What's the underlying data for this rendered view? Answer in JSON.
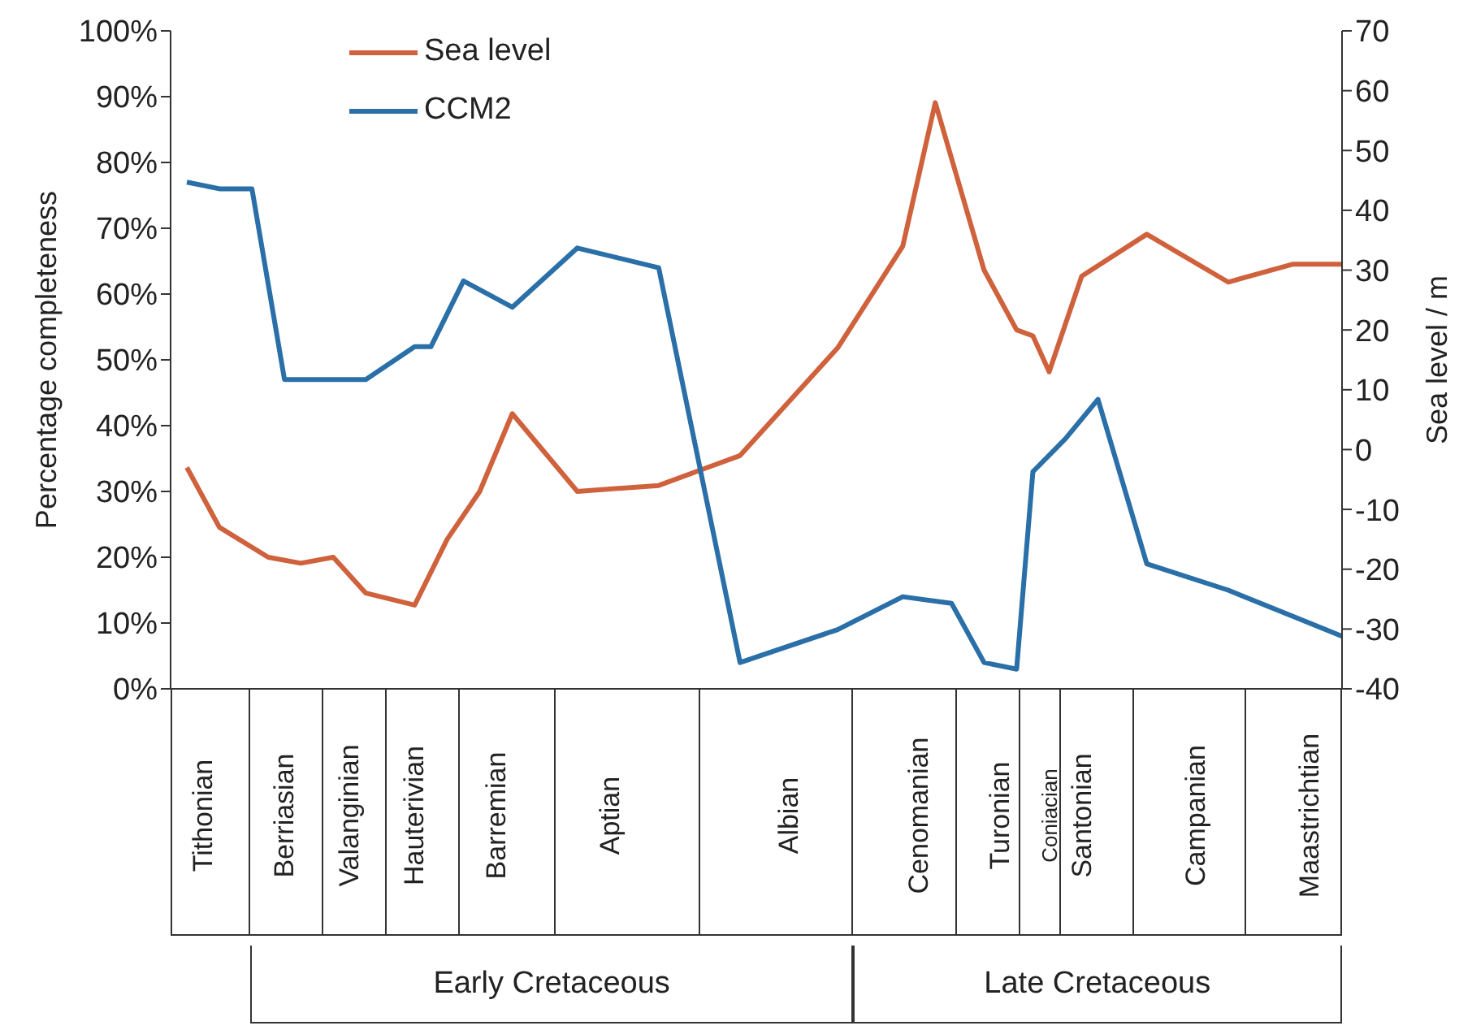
{
  "chart_data": {
    "type": "line",
    "categories": [
      null,
      null,
      "Tithonian",
      null,
      null,
      null,
      null,
      "Berriasian",
      null,
      null,
      null,
      "Valanginian",
      null,
      null,
      null,
      "Hauterivian",
      null,
      null,
      null,
      null,
      "Barremian",
      null,
      null,
      null,
      null,
      null,
      null,
      "Aptian",
      null,
      null,
      null,
      null,
      null,
      null,
      null,
      null,
      null,
      null,
      "Albian",
      null,
      null,
      null,
      null,
      null,
      null,
      null,
      "Cenomanian",
      null,
      null,
      null,
      null,
      "Turonian",
      null,
      null,
      "Coniacian",
      null,
      "Santonian",
      null,
      null,
      null,
      null,
      null,
      null,
      "Campanian",
      null,
      null,
      null,
      null,
      null,
      null,
      "Maastrichtian",
      null,
      null
    ],
    "series": [
      {
        "name": "Sea level",
        "color": "#cf623c",
        "axis": "y2",
        "values": [
          null,
          -3,
          null,
          -13,
          null,
          null,
          -18,
          null,
          -19,
          null,
          -18,
          null,
          -24,
          null,
          null,
          -26,
          null,
          -15,
          null,
          -7,
          null,
          6,
          null,
          null,
          null,
          -7,
          null,
          null,
          null,
          null,
          -6,
          null,
          null,
          -3,
          null,
          -1,
          null,
          null,
          null,
          null,
          null,
          17,
          null,
          null,
          null,
          34,
          null,
          58,
          null,
          null,
          30,
          null,
          20,
          19,
          13,
          null,
          29,
          null,
          null,
          null,
          36,
          null,
          null,
          null,
          null,
          28,
          null,
          null,
          null,
          31,
          null,
          null,
          31
        ]
      },
      {
        "name": "CCM2",
        "color": "#2a6fa8",
        "values": [
          null,
          77,
          null,
          76,
          null,
          76,
          null,
          47,
          null,
          null,
          null,
          null,
          47,
          null,
          null,
          52,
          52,
          null,
          62,
          null,
          null,
          58,
          null,
          null,
          null,
          67,
          null,
          null,
          null,
          null,
          64,
          null,
          null,
          null,
          null,
          4,
          null,
          null,
          null,
          null,
          null,
          9,
          null,
          null,
          null,
          14,
          null,
          null,
          13,
          null,
          4,
          null,
          3,
          33,
          null,
          38,
          null,
          44,
          null,
          null,
          19,
          null,
          null,
          null,
          null,
          15,
          null,
          null,
          null,
          null,
          null,
          null,
          8
        ]
      }
    ],
    "ylabel": "Percentage completeness",
    "y2label": "Sea level / m",
    "ylim": [
      0,
      100
    ],
    "yticks": [
      {
        "value": 0,
        "label": "0%"
      },
      {
        "value": 10,
        "label": "10%"
      },
      {
        "value": 20,
        "label": "20%"
      },
      {
        "value": 30,
        "label": "30%"
      },
      {
        "value": 40,
        "label": "40%"
      },
      {
        "value": 50,
        "label": "50%"
      },
      {
        "value": 60,
        "label": "60%"
      },
      {
        "value": 70,
        "label": "70%"
      },
      {
        "value": 80,
        "label": "80%"
      },
      {
        "value": 90,
        "label": "90%"
      },
      {
        "value": 100,
        "label": "100%"
      }
    ],
    "y2lim": [
      -40,
      70
    ],
    "y2ticks": [
      -40,
      -30,
      -20,
      -10,
      0,
      10,
      20,
      30,
      40,
      50,
      60,
      70
    ],
    "annotations": [
      "Early Cretaceous",
      "Late Cretaceous"
    ],
    "legend": "top left",
    "grid": false,
    "marker": "none",
    "line_style": "solid"
  }
}
